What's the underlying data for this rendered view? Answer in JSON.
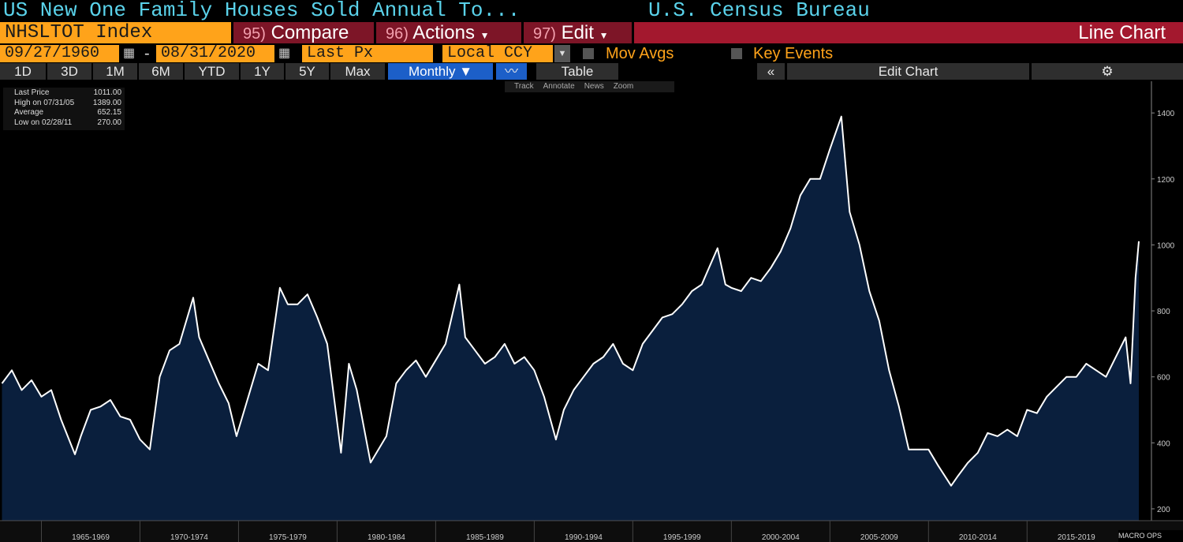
{
  "header": {
    "title": "US New One Family Houses Sold Annual To...",
    "source": "U.S. Census Bureau"
  },
  "toolbar": {
    "ticker": "NHSLTOT Index",
    "compare": {
      "num": "95)",
      "label": "Compare"
    },
    "actions": {
      "num": "96)",
      "label": "Actions"
    },
    "edit": {
      "num": "97)",
      "label": "Edit"
    },
    "chart_type": "Line Chart",
    "start_date": "09/27/1960",
    "separator": "-",
    "end_date": "08/31/2020",
    "field": "Last Px",
    "currency": "Local CCY",
    "mov_avgs": "Mov Avgs",
    "key_events": "Key Events",
    "periods": [
      "1D",
      "3D",
      "1M",
      "6M",
      "YTD",
      "1Y",
      "5Y",
      "Max"
    ],
    "frequency": "Monthly",
    "table": "Table",
    "edit_chart": "Edit Chart",
    "tools": [
      "Track",
      "Annotate",
      "News",
      "Zoom"
    ]
  },
  "legend": [
    {
      "label": "Last Price",
      "value": "1011.00"
    },
    {
      "label": "High on 07/31/05",
      "value": "1389.00"
    },
    {
      "label": "Average",
      "value": "652.15"
    },
    {
      "label": "Low on 02/28/11",
      "value": "270.00"
    }
  ],
  "watermark": "MACRO OPS",
  "chart_data": {
    "type": "area",
    "x": [
      1963,
      1963.5,
      1964,
      1964.5,
      1965,
      1965.5,
      1966,
      1966.7,
      1967,
      1967.5,
      1968,
      1968.5,
      1969,
      1969.5,
      1970,
      1970.5,
      1971,
      1971.5,
      1972,
      1972.7,
      1973,
      1973.5,
      1974,
      1974.5,
      1974.9,
      1975.5,
      1976,
      1976.5,
      1977.1,
      1977.5,
      1978,
      1978.5,
      1979,
      1979.5,
      1980.2,
      1980.6,
      1981,
      1981.7,
      1982.5,
      1983,
      1983.5,
      1984,
      1984.5,
      1985,
      1985.5,
      1986.2,
      1986.5,
      1987,
      1987.5,
      1988,
      1988.5,
      1989,
      1989.5,
      1990,
      1990.5,
      1991.1,
      1991.5,
      1992,
      1992.5,
      1993,
      1993.5,
      1994,
      1994.5,
      1995,
      1995.5,
      1996,
      1996.5,
      1997,
      1997.5,
      1998,
      1998.5,
      1999.3,
      1999.7,
      2000,
      2000.5,
      2001,
      2001.5,
      2002,
      2002.5,
      2003,
      2003.5,
      2004,
      2004.5,
      2005,
      2005.58,
      2006,
      2006.5,
      2007,
      2007.5,
      2008,
      2008.5,
      2009,
      2009.5,
      2010,
      2010.5,
      2011.15,
      2011.5,
      2012,
      2012.5,
      2013,
      2013.5,
      2014,
      2014.5,
      2015,
      2015.5,
      2016,
      2016.5,
      2017,
      2017.5,
      2018,
      2018.5,
      2019,
      2019.5,
      2020,
      2020.25,
      2020.5,
      2020.67
    ],
    "series": [
      {
        "name": "Last Price",
        "color": "#ffffff",
        "fill": "#0a1f3d",
        "values": [
          580,
          620,
          560,
          590,
          540,
          560,
          470,
          365,
          420,
          500,
          510,
          530,
          480,
          470,
          410,
          380,
          600,
          680,
          700,
          840,
          720,
          650,
          580,
          520,
          420,
          540,
          640,
          620,
          870,
          820,
          820,
          850,
          780,
          700,
          370,
          640,
          560,
          340,
          420,
          580,
          620,
          650,
          600,
          650,
          700,
          880,
          720,
          680,
          640,
          660,
          700,
          640,
          660,
          620,
          540,
          410,
          500,
          560,
          600,
          640,
          660,
          700,
          640,
          620,
          700,
          740,
          780,
          790,
          820,
          860,
          880,
          990,
          880,
          870,
          860,
          900,
          890,
          930,
          980,
          1050,
          1150,
          1200,
          1200,
          1290,
          1389,
          1100,
          1000,
          860,
          770,
          620,
          510,
          380,
          380,
          380,
          330,
          270,
          300,
          340,
          370,
          430,
          420,
          440,
          420,
          500,
          490,
          540,
          570,
          600,
          600,
          640,
          620,
          600,
          660,
          720,
          580,
          900,
          1011
        ]
      }
    ],
    "xlim": [
      1962.9,
      2020.67
    ],
    "xticks": [
      {
        "value": 1965,
        "label": "1965-1969"
      },
      {
        "value": 1970,
        "label": "1970-1974"
      },
      {
        "value": 1975,
        "label": "1975-1979"
      },
      {
        "value": 1980,
        "label": "1980-1984"
      },
      {
        "value": 1985,
        "label": "1985-1989"
      },
      {
        "value": 1990,
        "label": "1990-1994"
      },
      {
        "value": 1995,
        "label": "1995-1999"
      },
      {
        "value": 2000,
        "label": "2000-2004"
      },
      {
        "value": 2005,
        "label": "2005-2009"
      },
      {
        "value": 2010,
        "label": "2010-2014"
      },
      {
        "value": 2015,
        "label": "2015-2019"
      }
    ],
    "ylim": [
      164,
      1496
    ],
    "yticks": [
      200,
      400,
      600,
      800,
      1000,
      1200,
      1400
    ]
  }
}
